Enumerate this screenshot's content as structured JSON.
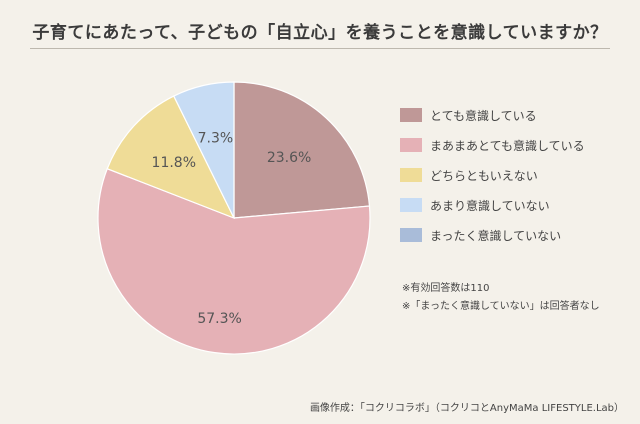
{
  "title": "子育てにあたって、子どもの「自立心」を養うことを意識していますか？",
  "chart_data": {
    "type": "pie",
    "start_angle_deg": 0,
    "direction": "clockwise",
    "legend_placement": "right",
    "slices": [
      {
        "name": "とても意識している",
        "value": 23.6,
        "label": "23.6%",
        "color": "#bf9897"
      },
      {
        "name": "まあまあとても意識している",
        "value": 57.3,
        "label": "57.3%",
        "color": "#e5b1b6"
      },
      {
        "name": "どちらともいえない",
        "value": 11.8,
        "label": "11.8%",
        "color": "#efdc97"
      },
      {
        "name": "あまり意識していない",
        "value": 7.3,
        "label": "7.3%",
        "color": "#c7dcf4"
      },
      {
        "name": "まったく意識していない",
        "value": 0,
        "label": "",
        "color": "#a9bcd9"
      }
    ],
    "label_color": "#555555"
  },
  "notes": [
    "※有効回答数は110",
    "※「まったく意識していない」は回答者なし"
  ],
  "credit": "画像作成：「コクリコラボ」（コクリコとAnyMaMa LIFESTYLE.Lab）"
}
